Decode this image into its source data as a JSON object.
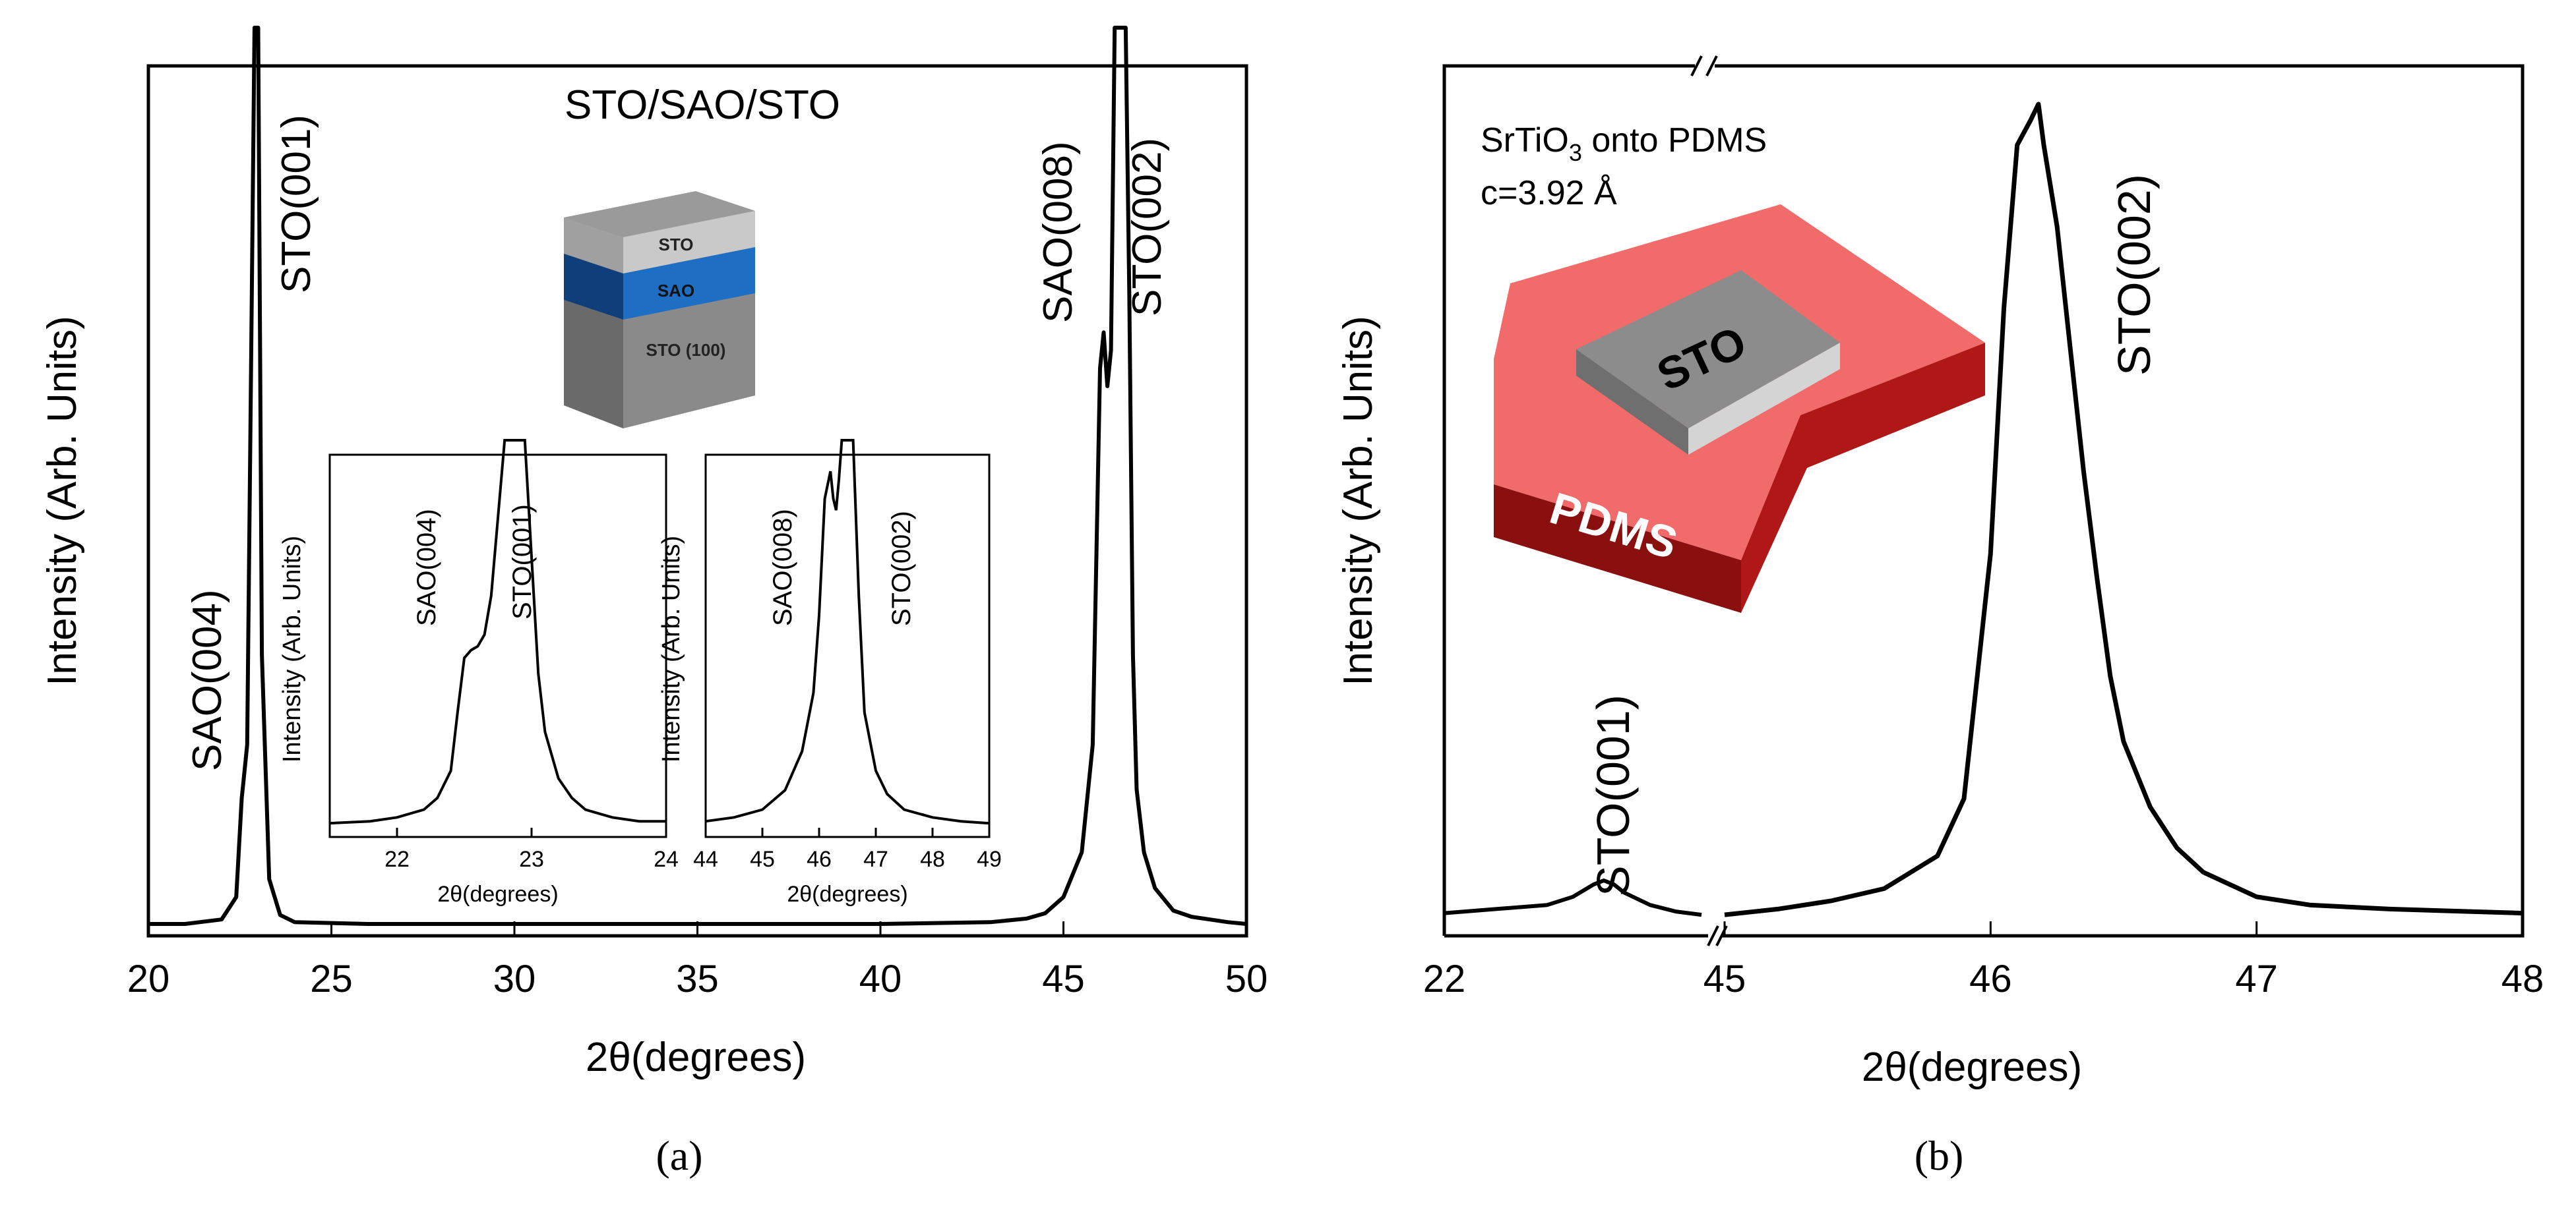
{
  "panel_a": {
    "panel_label": "(a)",
    "title": "STO/SAO/STO",
    "xlabel": "2θ(degrees)",
    "ylabel": "Intensity (Arb. Units)",
    "xticks": [
      "20",
      "25",
      "30",
      "35",
      "40",
      "45",
      "50"
    ],
    "peak_labels": [
      "SAO(004)",
      "STO(001)",
      "SAO(008)",
      "STO(002)"
    ],
    "stack_layers": [
      "STO",
      "SAO",
      "STO (100)"
    ],
    "inset1": {
      "ylabel": "Intensity (Arb. Units)",
      "xlabel": "2θ(degrees)",
      "xticks": [
        "22",
        "23",
        "24"
      ],
      "peak_labels": [
        "SAO(004)",
        "STO(001)"
      ]
    },
    "inset2": {
      "ylabel": "Intensity (Arb. Units)",
      "xlabel": "2θ(degrees)",
      "xticks": [
        "44",
        "45",
        "46",
        "47",
        "48",
        "49"
      ],
      "peak_labels": [
        "SAO(008)",
        "STO(002)"
      ]
    }
  },
  "panel_b": {
    "panel_label": "(b)",
    "annotation_line1_pre": "SrTiO",
    "annotation_line1_sub": "3",
    "annotation_line1_post": " onto PDMS",
    "annotation_line2": "c=3.92 Å",
    "xlabel": "2θ(degrees)",
    "ylabel": "Intensity (Arb. Units)",
    "xticks": [
      "22",
      "45",
      "46",
      "47",
      "48"
    ],
    "peak_labels": [
      "STO(001)",
      "STO(002)"
    ],
    "sto_block_label": "STO",
    "pdms_label": "PDMS"
  },
  "colors": {
    "axis": "#000000",
    "pdms_top": "#f26b6b",
    "pdms_side": "#8a0f0f",
    "sto_top": "#8c8c8c",
    "sto_side": "#d4d4d4",
    "sao_layer": "#1e6fc4",
    "stack_grey": "#8a8a8a"
  },
  "chart_data": [
    {
      "type": "line",
      "panel": "a",
      "xlabel": "2θ(degrees)",
      "ylabel": "Intensity (Arb. Units)",
      "xlim": [
        20,
        50
      ],
      "series": [
        {
          "x": [
            20,
            21,
            22,
            22.4,
            22.55,
            22.6,
            22.7,
            22.8,
            22.9,
            22.95,
            23.0,
            23.1,
            23.3,
            23.6,
            24,
            26,
            30,
            35,
            40,
            43,
            44,
            44.5,
            45,
            45.5,
            45.8,
            46.0,
            46.1,
            46.2,
            46.3,
            46.4,
            46.5,
            46.6,
            46.7,
            46.8,
            46.9,
            47.0,
            47.2,
            47.5,
            48,
            48.5,
            49,
            49.5,
            50
          ],
          "y": [
            0.0,
            0.0,
            0.005,
            0.03,
            0.14,
            0.16,
            0.2,
            0.6,
            1.0,
            1.0,
            1.0,
            0.3,
            0.05,
            0.01,
            0.002,
            0.0,
            0.0,
            0.0,
            0.0,
            0.002,
            0.006,
            0.012,
            0.03,
            0.08,
            0.2,
            0.62,
            0.66,
            0.6,
            0.64,
            1.0,
            1.0,
            1.0,
            1.0,
            0.7,
            0.3,
            0.15,
            0.08,
            0.04,
            0.015,
            0.008,
            0.005,
            0.002,
            0.0
          ]
        }
      ]
    },
    {
      "type": "line",
      "panel": "a-inset1",
      "xlabel": "2θ(degrees)",
      "ylabel": "Intensity (Arb. Units)",
      "xlim": [
        21.5,
        24
      ],
      "series": [
        {
          "x": [
            21.5,
            21.8,
            22.0,
            22.2,
            22.3,
            22.4,
            22.45,
            22.5,
            22.55,
            22.6,
            22.65,
            22.7,
            22.75,
            22.8,
            22.85,
            22.9,
            22.95,
            23.0,
            23.05,
            23.1,
            23.2,
            23.3,
            23.4,
            23.6,
            23.8,
            24.0
          ],
          "y": [
            0.015,
            0.02,
            0.03,
            0.05,
            0.08,
            0.15,
            0.3,
            0.44,
            0.46,
            0.47,
            0.5,
            0.6,
            0.8,
            1.0,
            1.0,
            1.0,
            1.0,
            0.7,
            0.4,
            0.25,
            0.13,
            0.08,
            0.05,
            0.03,
            0.02,
            0.02
          ]
        }
      ]
    },
    {
      "type": "line",
      "panel": "a-inset2",
      "xlabel": "2θ(degrees)",
      "ylabel": "Intensity (Arb. Units)",
      "xlim": [
        44,
        49
      ],
      "series": [
        {
          "x": [
            44.0,
            44.5,
            45.0,
            45.4,
            45.7,
            45.9,
            46.0,
            46.1,
            46.2,
            46.25,
            46.3,
            46.35,
            46.4,
            46.45,
            46.5,
            46.6,
            46.7,
            46.8,
            47.0,
            47.2,
            47.5,
            48.0,
            48.5,
            49.0
          ],
          "y": [
            0.02,
            0.03,
            0.05,
            0.1,
            0.2,
            0.35,
            0.55,
            0.85,
            0.92,
            0.85,
            0.82,
            0.9,
            1.0,
            1.0,
            1.0,
            1.0,
            0.6,
            0.3,
            0.15,
            0.09,
            0.05,
            0.03,
            0.02,
            0.015
          ]
        }
      ]
    },
    {
      "type": "line",
      "panel": "b",
      "xlabel": "2θ(degrees)",
      "ylabel": "Intensity (Arb. Units)",
      "x_axis": "broken",
      "xticks": [
        22,
        45,
        46,
        47,
        48
      ],
      "series": [
        {
          "x": [
            22,
            22.2,
            22.4,
            22.5,
            22.58,
            22.62,
            22.66,
            22.7,
            22.8,
            22.9,
            23.0,
            45,
            45.2,
            45.4,
            45.6,
            45.8,
            45.9,
            46.0,
            46.05,
            46.1,
            46.15,
            46.18,
            46.2,
            46.25,
            46.3,
            46.35,
            46.4,
            46.45,
            46.5,
            46.6,
            46.7,
            46.8,
            47.0,
            47.2,
            47.5,
            47.8,
            48
          ],
          "y": [
            0.01,
            0.015,
            0.02,
            0.03,
            0.045,
            0.05,
            0.045,
            0.035,
            0.02,
            0.012,
            0.008,
            0.008,
            0.015,
            0.025,
            0.04,
            0.08,
            0.15,
            0.45,
            0.75,
            0.95,
            0.98,
            1.0,
            0.95,
            0.85,
            0.7,
            0.55,
            0.42,
            0.3,
            0.22,
            0.14,
            0.09,
            0.06,
            0.03,
            0.02,
            0.015,
            0.012,
            0.01
          ]
        }
      ]
    }
  ]
}
